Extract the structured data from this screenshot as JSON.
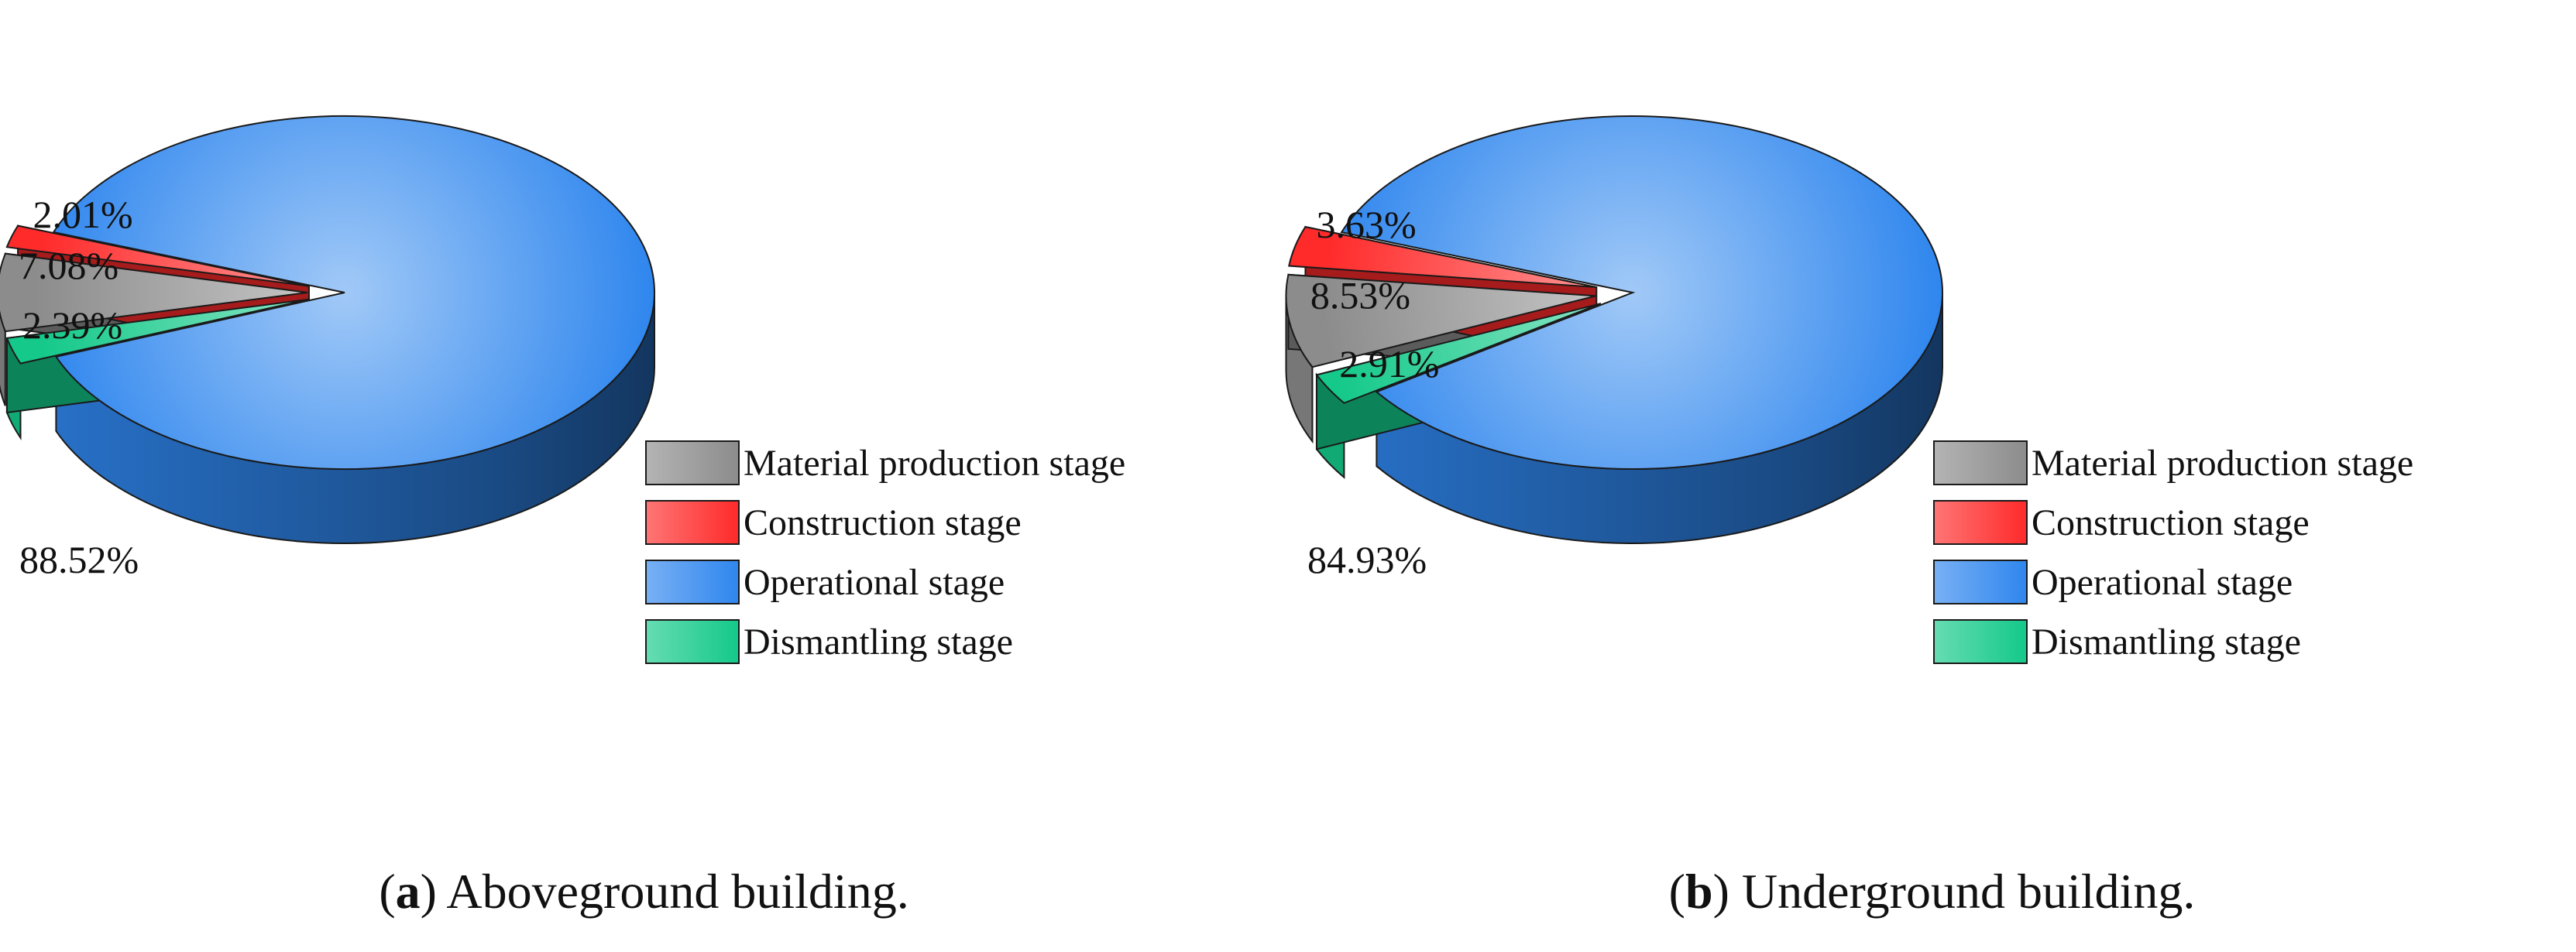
{
  "chart_data": [
    {
      "type": "pie",
      "panel_letter": "a",
      "caption": "Aboveground building.",
      "categories": [
        "Material production stage",
        "Construction stage",
        "Operational stage",
        "Dismantling stage"
      ],
      "values": [
        7.08,
        2.01,
        88.52,
        2.39
      ],
      "data_labels": [
        "7.08%",
        "2.01%",
        "88.52%",
        "2.39%"
      ],
      "legend_position": "right",
      "style": "3d-exploded"
    },
    {
      "type": "pie",
      "panel_letter": "b",
      "caption": "Underground building.",
      "categories": [
        "Material production stage",
        "Construction stage",
        "Operational stage",
        "Dismantling stage"
      ],
      "values": [
        8.53,
        3.63,
        84.93,
        2.91
      ],
      "data_labels": [
        "8.53%",
        "3.63%",
        "84.93%",
        "2.91%"
      ],
      "legend_position": "right",
      "style": "3d-exploded"
    }
  ],
  "colors": {
    "Material production stage": "#8c8c8c",
    "Construction stage": "#ff2a2a",
    "Operational stage": "#2f86ee",
    "Dismantling stage": "#14c98a"
  }
}
